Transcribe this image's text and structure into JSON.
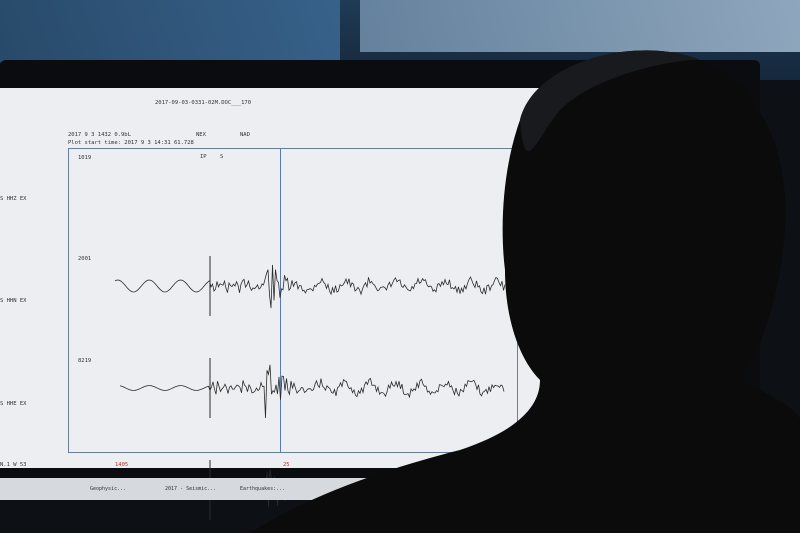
{
  "header": {
    "event_id": "2017-09-03-0331-02M.DOC___170",
    "date_line": "2017  9 3 1432  0.9bL",
    "col_a": "NEX",
    "col_b": "NAD",
    "plot_start": "Plot start time: 2017  9  3   14:31   61.728"
  },
  "traces": [
    {
      "station": "1019",
      "left_label": "S  HHZ    EX"
    },
    {
      "station": "2001",
      "left_label": "S  HHN    EX"
    },
    {
      "station": "8219",
      "left_label": "S  HHE    EX"
    }
  ],
  "phase_marks": {
    "p": "IP",
    "s": "S"
  },
  "bottom": {
    "left_label": "N.1 W   53",
    "mid_label": "1405",
    "right_label": "25"
  },
  "taskbar": {
    "item1": "Geophysic...",
    "item2": "2017 - Seismic...",
    "item3": "Earthquakes:..."
  },
  "colors": {
    "screen": "#eceef1",
    "trace": "#2b2b2b",
    "person": "#0b0b0c"
  }
}
